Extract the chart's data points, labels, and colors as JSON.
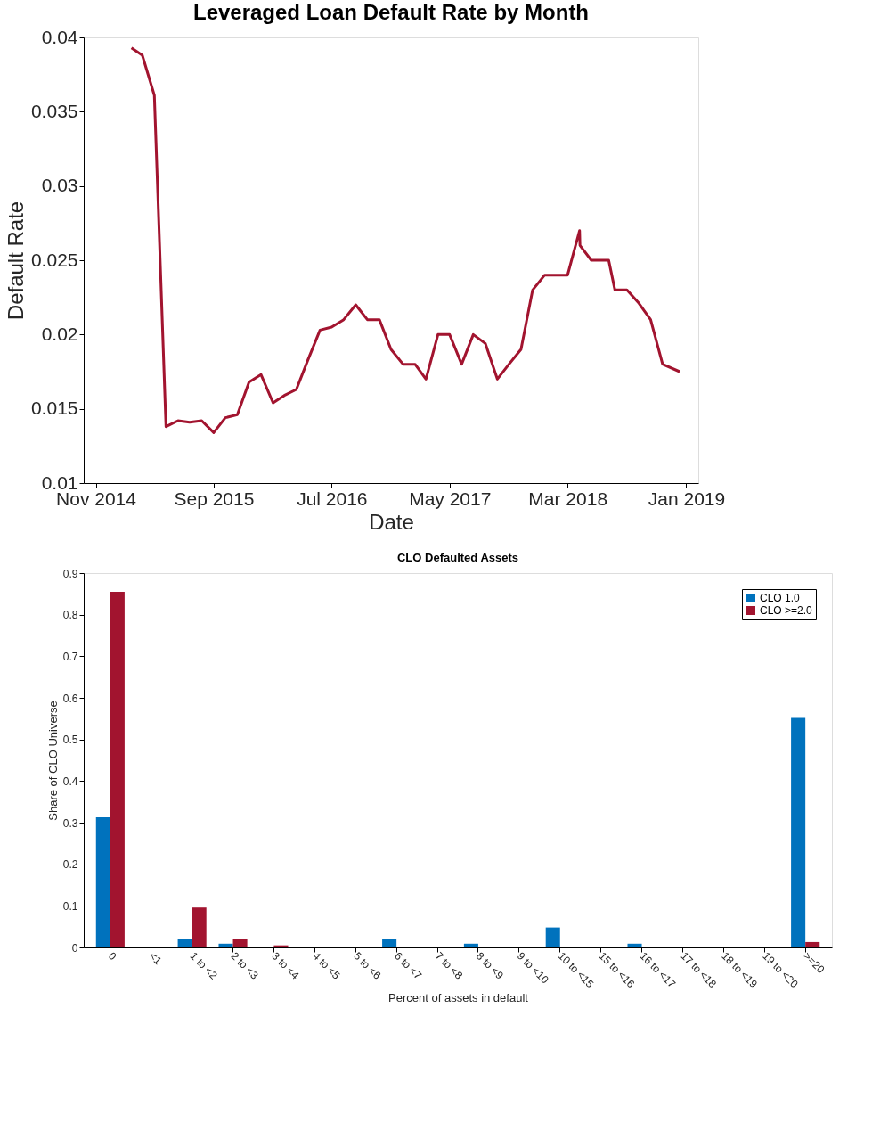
{
  "chart_data": [
    {
      "type": "line",
      "title": "Leveraged Loan Default Rate by Month",
      "xlabel": "Date",
      "ylabel": "Default Rate",
      "x": [
        "2015-02-01",
        "2015-03-01",
        "2015-04-01",
        "2015-05-01",
        "2015-06-01",
        "2015-07-01",
        "2015-08-01",
        "2015-09-01",
        "2015-10-01",
        "2015-11-01",
        "2015-12-01",
        "2016-01-01",
        "2016-02-01",
        "2016-03-01",
        "2016-04-01",
        "2016-05-01",
        "2016-06-01",
        "2016-07-01",
        "2016-08-01",
        "2016-09-01",
        "2016-10-01",
        "2016-11-01",
        "2016-12-01",
        "2017-01-01",
        "2017-02-01",
        "2017-03-01",
        "2017-04-01",
        "2017-05-01",
        "2017-06-01",
        "2017-07-01",
        "2017-08-01",
        "2017-09-01",
        "2017-10-01",
        "2017-11-01",
        "2017-12-01",
        "2018-01-01",
        "2018-02-01",
        "2018-03-01",
        "2018-04-01",
        "2018-04-02",
        "2018-05-01",
        "2018-06-15",
        "2018-07-01",
        "2018-08-01",
        "2018-09-01",
        "2018-10-01",
        "2018-11-01",
        "2018-12-15"
      ],
      "series": [
        {
          "color": "#a2142f",
          "values": [
            0.0393,
            0.0388,
            0.0361,
            0.0138,
            0.0142,
            0.0141,
            0.0142,
            0.0134,
            0.0144,
            0.0146,
            0.0168,
            0.0173,
            0.0154,
            0.0159,
            0.0163,
            0.0183,
            0.0203,
            0.0205,
            0.021,
            0.022,
            0.021,
            0.021,
            0.019,
            0.018,
            0.018,
            0.017,
            0.02,
            0.02,
            0.018,
            0.02,
            0.0194,
            0.017,
            0.018,
            0.019,
            0.023,
            0.024,
            0.024,
            0.024,
            0.027,
            0.026,
            0.025,
            0.025,
            0.023,
            0.023,
            0.0221,
            0.021,
            0.018,
            0.0175
          ]
        }
      ],
      "xlim": [
        "2014-10-01",
        "2019-02-01"
      ],
      "xticks": [
        {
          "value": "2014-11-01",
          "label": "Nov 2014"
        },
        {
          "value": "2015-09-01",
          "label": "Sep 2015"
        },
        {
          "value": "2016-07-01",
          "label": "Jul 2016"
        },
        {
          "value": "2017-05-01",
          "label": "May 2017"
        },
        {
          "value": "2018-03-01",
          "label": "Mar 2018"
        },
        {
          "value": "2019-01-01",
          "label": "Jan 2019"
        }
      ],
      "ylim": [
        0.01,
        0.04
      ],
      "yticks": [
        0.01,
        0.015,
        0.02,
        0.025,
        0.03,
        0.035,
        0.04
      ],
      "grid": false,
      "marker": "none",
      "line_style": "solid"
    },
    {
      "type": "bar",
      "title": "CLO Defaulted Assets",
      "xlabel": "Percent of assets in default",
      "ylabel": "Share of CLO Universe",
      "categories": [
        "0",
        "<1",
        "1 to <2",
        "2 to <3",
        "3 to <4",
        "4 to <5",
        "5 to <6",
        "6 to <7",
        "7 to <8",
        "8 to <9",
        "9 to <10",
        "10 to <15",
        "15 to <16",
        "16 to <17",
        "17 to <18",
        "18 to <19",
        "19 to <20",
        ">=20"
      ],
      "series": [
        {
          "name": "CLO 1.0",
          "color": "#0072bd",
          "values": [
            0.313,
            0,
            0.02,
            0.009,
            0,
            0,
            0,
            0.02,
            0,
            0.009,
            0,
            0.048,
            0,
            0.009,
            0,
            0,
            0,
            0.552
          ]
        },
        {
          "name": "CLO >=2.0",
          "color": "#a2142f",
          "values": [
            0.855,
            0,
            0.096,
            0.021,
            0.005,
            0.002,
            0,
            0,
            0,
            0,
            0,
            0,
            0,
            0,
            0,
            0,
            0,
            0.013
          ]
        }
      ],
      "ylim": [
        0,
        0.9
      ],
      "yticks": [
        0,
        0.1,
        0.2,
        0.3,
        0.4,
        0.5,
        0.6,
        0.7,
        0.8,
        0.9
      ],
      "grid": false,
      "legend": "top right"
    }
  ]
}
